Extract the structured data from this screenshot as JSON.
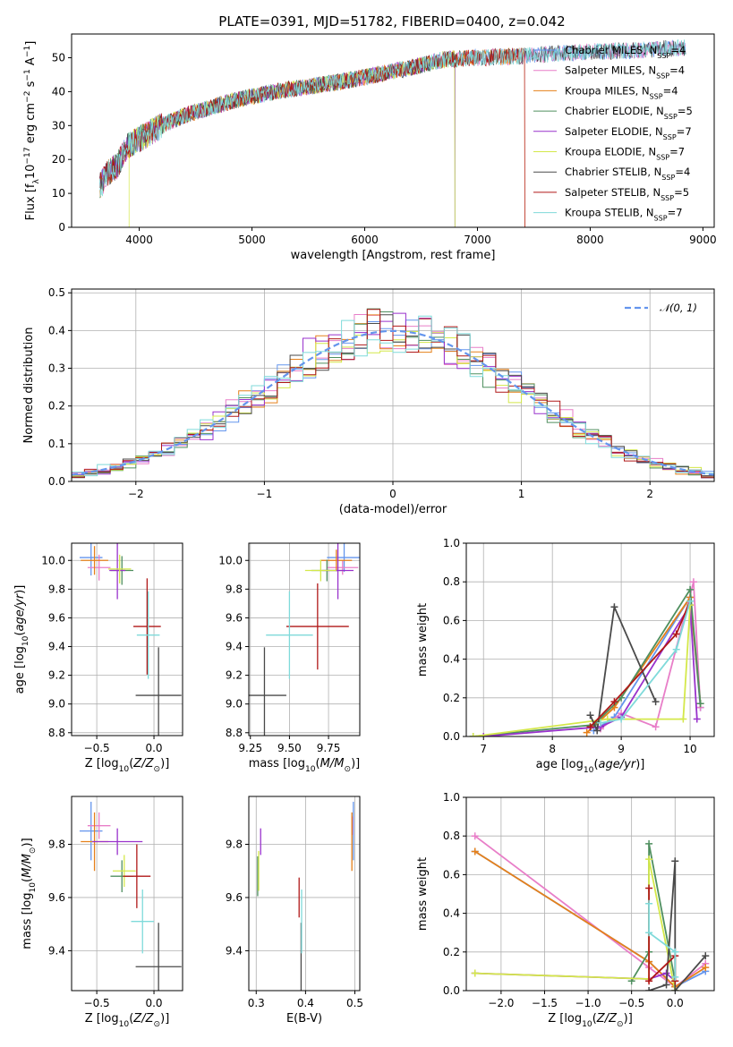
{
  "figure": {
    "title": "PLATE=0391, MJD=51782, FIBERID=0400, z=0.042"
  },
  "colors": {
    "Chabrier MILES": "#6495ed",
    "Salpeter MILES": "#e87ec8",
    "Kroupa MILES": "#e5801a",
    "Chabrier ELODIE": "#4f8f5f",
    "Salpeter ELODIE": "#9932cc",
    "Kroupa ELODIE": "#d4e84a",
    "Chabrier STELIB": "#4a4a4a",
    "Salpeter STELIB": "#b01818",
    "Kroupa STELIB": "#7fdada",
    "gaussian": "#6495ed",
    "grid": "#b0b0b0"
  },
  "chart_data": [
    {
      "id": "spectrum",
      "type": "line",
      "title": "PLATE=0391, MJD=51782, FIBERID=0400, z=0.042",
      "xlabel": "wavelength [Angstrom, rest frame]",
      "ylabel": "Flux [f_λ10^-17 erg cm^-2 s^-1 A^-1]",
      "xlim": [
        3400,
        9100
      ],
      "ylim": [
        0,
        57
      ],
      "xticks": [
        4000,
        5000,
        6000,
        7000,
        8000,
        9000
      ],
      "yticks": [
        0,
        10,
        20,
        30,
        40,
        50
      ],
      "grid": false,
      "legend_position": "upper-right",
      "continuum": [
        [
          3650,
          12
        ],
        [
          3720,
          16
        ],
        [
          3800,
          18
        ],
        [
          3900,
          24
        ],
        [
          4000,
          26
        ],
        [
          4100,
          28
        ],
        [
          4200,
          30
        ],
        [
          4400,
          33
        ],
        [
          4600,
          35
        ],
        [
          4800,
          37
        ],
        [
          5000,
          38.5
        ],
        [
          5200,
          40
        ],
        [
          5500,
          41.5
        ],
        [
          5800,
          43
        ],
        [
          6100,
          45
        ],
        [
          6400,
          47
        ],
        [
          6700,
          49.5
        ],
        [
          7000,
          50
        ],
        [
          7400,
          50.5
        ],
        [
          7800,
          51.5
        ],
        [
          8200,
          52
        ],
        [
          8600,
          52.5
        ],
        [
          8850,
          53
        ]
      ],
      "series": [
        {
          "name": "Chabrier MILES",
          "nssp": "4",
          "end": 8850
        },
        {
          "name": "Salpeter MILES",
          "nssp": "4",
          "end": 8850
        },
        {
          "name": "Kroupa MILES",
          "nssp": "4",
          "end": 7420
        },
        {
          "name": "Chabrier ELODIE",
          "nssp": "5",
          "end": 6800
        },
        {
          "name": "Salpeter ELODIE",
          "nssp": "7",
          "end": 6800
        },
        {
          "name": "Kroupa ELODIE",
          "nssp": "7",
          "start": 3910,
          "end": 6800
        },
        {
          "name": "Chabrier STELIB",
          "nssp": "4",
          "end": 8850
        },
        {
          "name": "Salpeter STELIB",
          "nssp": "5",
          "end": 7420
        },
        {
          "name": "Kroupa STELIB",
          "nssp": "7",
          "end": 8850
        }
      ]
    },
    {
      "id": "residuals",
      "type": "line",
      "xlabel": "(data-model)/error",
      "ylabel": "Normed distribution",
      "xlim": [
        -2.5,
        2.5
      ],
      "ylim": [
        0,
        0.51
      ],
      "xticks": [
        -2,
        -1,
        0,
        1,
        2
      ],
      "yticks": [
        0.0,
        0.1,
        0.2,
        0.3,
        0.4,
        0.5
      ],
      "grid": true,
      "legend_position": "upper-right",
      "gaussian_label": "𝒩(0, 1)",
      "bin_edges_from": -2.5,
      "bin_width": 0.1,
      "bins": 50,
      "series": [
        {
          "name": "Chabrier MILES"
        },
        {
          "name": "Salpeter MILES"
        },
        {
          "name": "Kroupa MILES"
        },
        {
          "name": "Chabrier ELODIE"
        },
        {
          "name": "Salpeter ELODIE"
        },
        {
          "name": "Kroupa ELODIE"
        },
        {
          "name": "Chabrier STELIB"
        },
        {
          "name": "Salpeter STELIB"
        },
        {
          "name": "Kroupa STELIB"
        }
      ]
    },
    {
      "id": "z_age",
      "type": "scatter",
      "xlabel": "Z [log10(Z/Z☉)]",
      "ylabel": "age  [log10(age/yr)]",
      "xlim": [
        -0.72,
        0.25
      ],
      "ylim": [
        8.78,
        10.12
      ],
      "xticks": [
        -0.5,
        0.0
      ],
      "yticks": [
        8.8,
        9.0,
        9.2,
        9.4,
        9.6,
        9.8,
        10.0
      ],
      "grid": true,
      "points": [
        {
          "name": "Chabrier MILES",
          "x": -0.55,
          "xerr": 0.1,
          "y": 10.02,
          "yerr": 0.25
        },
        {
          "name": "Salpeter MILES",
          "x": -0.48,
          "xerr": 0.1,
          "y": 9.95,
          "yerr": 0.18
        },
        {
          "name": "Kroupa MILES",
          "x": -0.52,
          "xerr": 0.12,
          "y": 10.0,
          "yerr": 0.2
        },
        {
          "name": "Chabrier ELODIE",
          "x": -0.28,
          "xerr": 0.1,
          "y": 9.93,
          "yerr": 0.2
        },
        {
          "name": "Salpeter ELODIE",
          "x": -0.32,
          "xerr": 0.07,
          "y": 9.93,
          "yerr": 0.4
        },
        {
          "name": "Kroupa ELODIE",
          "x": -0.3,
          "xerr": 0.1,
          "y": 9.94,
          "yerr": 0.2
        },
        {
          "name": "Chabrier STELIB",
          "x": 0.04,
          "xerr": 0.2,
          "y": 9.06,
          "yerr": 0.67
        },
        {
          "name": "Salpeter STELIB",
          "x": -0.06,
          "xerr": 0.12,
          "y": 9.54,
          "yerr": 0.67
        },
        {
          "name": "Kroupa STELIB",
          "x": -0.05,
          "xerr": 0.1,
          "y": 9.48,
          "yerr": 0.61
        }
      ]
    },
    {
      "id": "mass_age",
      "type": "scatter",
      "xlabel": "mass [log10(M/M☉)]",
      "ylabel": "",
      "xlim": [
        9.24,
        9.95
      ],
      "ylim": [
        8.78,
        10.12
      ],
      "xticks": [
        9.25,
        9.5,
        9.75
      ],
      "yticks": [
        8.8,
        9.0,
        9.2,
        9.4,
        9.6,
        9.8,
        10.0
      ],
      "grid": true,
      "points": [
        {
          "name": "Chabrier MILES",
          "x": 9.85,
          "xerr": 0.11,
          "y": 10.02,
          "yerr": 0.2
        },
        {
          "name": "Salpeter MILES",
          "x": 9.84,
          "xerr": 0.1,
          "y": 9.95,
          "yerr": 0.1
        },
        {
          "name": "Kroupa MILES",
          "x": 9.8,
          "xerr": 0.1,
          "y": 10.0,
          "yerr": 0.15
        },
        {
          "name": "Chabrier ELODIE",
          "x": 9.74,
          "xerr": 0.1,
          "y": 9.93,
          "yerr": 0.15
        },
        {
          "name": "Salpeter ELODIE",
          "x": 9.81,
          "xerr": 0.1,
          "y": 9.93,
          "yerr": 0.4
        },
        {
          "name": "Kroupa ELODIE",
          "x": 9.7,
          "xerr": 0.1,
          "y": 9.93,
          "yerr": 0.15
        },
        {
          "name": "Chabrier STELIB",
          "x": 9.34,
          "xerr": 0.14,
          "y": 9.06,
          "yerr": 0.67
        },
        {
          "name": "Salpeter STELIB",
          "x": 9.68,
          "xerr": 0.2,
          "y": 9.54,
          "yerr": 0.6
        },
        {
          "name": "Kroupa STELIB",
          "x": 9.5,
          "xerr": 0.15,
          "y": 9.48,
          "yerr": 0.61
        }
      ]
    },
    {
      "id": "age_weight",
      "type": "line",
      "xlabel": "age  [log10(age/yr)]",
      "ylabel": "mass weight",
      "xlim": [
        6.75,
        10.35
      ],
      "ylim": [
        0,
        1.0
      ],
      "xticks": [
        7,
        8,
        9,
        10
      ],
      "yticks": [
        0.0,
        0.2,
        0.4,
        0.6,
        0.8,
        1.0
      ],
      "grid": true,
      "series": [
        {
          "name": "Chabrier MILES",
          "x": [
            8.6,
            8.9,
            10.0,
            10.15
          ],
          "y": [
            0.03,
            0.1,
            0.72,
            0.15
          ]
        },
        {
          "name": "Salpeter MILES",
          "x": [
            8.7,
            9.0,
            9.5,
            10.05,
            10.15
          ],
          "y": [
            0.04,
            0.12,
            0.05,
            0.8,
            0.15
          ]
        },
        {
          "name": "Kroupa MILES",
          "x": [
            8.5,
            8.9,
            10.0,
            10.15
          ],
          "y": [
            0.02,
            0.15,
            0.72,
            0.17
          ]
        },
        {
          "name": "Chabrier ELODIE",
          "x": [
            6.85,
            8.6,
            9.0,
            10.0,
            10.15
          ],
          "y": [
            0.0,
            0.06,
            0.2,
            0.76,
            0.17
          ]
        },
        {
          "name": "Salpeter ELODIE",
          "x": [
            7.0,
            8.7,
            9.0,
            10.0,
            10.1
          ],
          "y": [
            0.0,
            0.05,
            0.1,
            0.68,
            0.09
          ]
        },
        {
          "name": "Kroupa ELODIE",
          "x": [
            6.85,
            8.8,
            9.9,
            10.0
          ],
          "y": [
            0.0,
            0.09,
            0.09,
            0.68
          ]
        },
        {
          "name": "Chabrier STELIB",
          "x": [
            8.55,
            8.65,
            8.9,
            9.5
          ],
          "y": [
            0.11,
            0.03,
            0.67,
            0.18
          ]
        },
        {
          "name": "Salpeter STELIB",
          "x": [
            8.55,
            8.9,
            9.8,
            10.0
          ],
          "y": [
            0.05,
            0.18,
            0.53,
            0.7
          ]
        },
        {
          "name": "Kroupa STELIB",
          "x": [
            8.7,
            9.0,
            9.8,
            10.0
          ],
          "y": [
            0.07,
            0.09,
            0.45,
            0.7
          ]
        }
      ]
    },
    {
      "id": "z_mass",
      "type": "scatter",
      "xlabel": "Z [log10(Z/Z☉)]",
      "ylabel": "mass [log10(M/M☉)]",
      "xlim": [
        -0.72,
        0.25
      ],
      "ylim": [
        9.25,
        9.98
      ],
      "xticks": [
        -0.5,
        0.0
      ],
      "yticks": [
        9.4,
        9.6,
        9.8
      ],
      "grid": true,
      "points": [
        {
          "name": "Chabrier MILES",
          "x": -0.55,
          "xerr": 0.1,
          "y": 9.85,
          "yerr": 0.22
        },
        {
          "name": "Salpeter MILES",
          "x": -0.48,
          "xerr": 0.1,
          "y": 9.87,
          "yerr": 0.1
        },
        {
          "name": "Kroupa MILES",
          "x": -0.52,
          "xerr": 0.12,
          "y": 9.81,
          "yerr": 0.22
        },
        {
          "name": "Chabrier ELODIE",
          "x": -0.28,
          "xerr": 0.1,
          "y": 9.68,
          "yerr": 0.12
        },
        {
          "name": "Salpeter ELODIE",
          "x": -0.32,
          "xerr": 0.22,
          "y": 9.81,
          "yerr": 0.1
        },
        {
          "name": "Kroupa ELODIE",
          "x": -0.26,
          "xerr": 0.1,
          "y": 9.7,
          "yerr": 0.12
        },
        {
          "name": "Chabrier STELIB",
          "x": 0.04,
          "xerr": 0.2,
          "y": 9.34,
          "yerr": 0.33
        },
        {
          "name": "Salpeter STELIB",
          "x": -0.15,
          "xerr": 0.12,
          "y": 9.68,
          "yerr": 0.24
        },
        {
          "name": "Kroupa STELIB",
          "x": -0.1,
          "xerr": 0.1,
          "y": 9.51,
          "yerr": 0.24
        }
      ]
    },
    {
      "id": "ebv_mass",
      "type": "scatter",
      "xlabel": "E(B-V)",
      "ylabel": "",
      "xlim": [
        0.285,
        0.51
      ],
      "ylim": [
        9.25,
        9.98
      ],
      "xticks": [
        0.3,
        0.4,
        0.5
      ],
      "yticks": [
        9.4,
        9.6,
        9.8
      ],
      "grid": true,
      "points": [
        {
          "name": "Chabrier MILES",
          "x": 0.497,
          "y": 9.85,
          "yerr": 0.22
        },
        {
          "name": "Salpeter MILES",
          "x": 0.495,
          "y": 9.87,
          "yerr": 0.07
        },
        {
          "name": "Kroupa MILES",
          "x": 0.494,
          "y": 9.81,
          "yerr": 0.22
        },
        {
          "name": "Chabrier ELODIE",
          "x": 0.303,
          "y": 9.68,
          "yerr": 0.15
        },
        {
          "name": "Salpeter ELODIE",
          "x": 0.309,
          "y": 9.81,
          "yerr": 0.1
        },
        {
          "name": "Kroupa ELODIE",
          "x": 0.305,
          "y": 9.7,
          "yerr": 0.15
        },
        {
          "name": "Chabrier STELIB",
          "x": 0.391,
          "y": 9.34,
          "yerr": 0.33
        },
        {
          "name": "Salpeter STELIB",
          "x": 0.387,
          "y": 9.6,
          "yerr": 0.15
        },
        {
          "name": "Kroupa STELIB",
          "x": 0.392,
          "y": 9.51,
          "yerr": 0.24
        }
      ]
    },
    {
      "id": "z_weight",
      "type": "line",
      "xlabel": "Z [log10(Z/Z☉)]",
      "ylabel": "mass weight",
      "xlim": [
        -2.4,
        0.45
      ],
      "ylim": [
        0,
        1.0
      ],
      "xticks": [
        -2.0,
        -1.5,
        -1.0,
        -0.5,
        0.0
      ],
      "yticks": [
        0.0,
        0.2,
        0.4,
        0.6,
        0.8,
        1.0
      ],
      "grid": true,
      "series": [
        {
          "name": "Chabrier MILES",
          "x": [
            -2.3,
            -0.3,
            0.0,
            0.35
          ],
          "y": [
            0.72,
            0.15,
            0.02,
            0.1
          ]
        },
        {
          "name": "Salpeter MILES",
          "x": [
            -2.3,
            -0.3,
            0.0,
            0.35
          ],
          "y": [
            0.8,
            0.12,
            0.02,
            0.14
          ]
        },
        {
          "name": "Kroupa MILES",
          "x": [
            -2.3,
            -0.3,
            0.0,
            0.35
          ],
          "y": [
            0.72,
            0.15,
            0.02,
            0.12
          ]
        },
        {
          "name": "Chabrier ELODIE",
          "x": [
            -0.5,
            -0.3,
            -0.3,
            0.0
          ],
          "y": [
            0.05,
            0.2,
            0.76,
            0.05
          ]
        },
        {
          "name": "Salpeter ELODIE",
          "x": [
            -2.3,
            -0.3,
            -0.1,
            0.0
          ],
          "y": [
            0.09,
            0.06,
            0.09,
            0.05
          ]
        },
        {
          "name": "Kroupa ELODIE",
          "x": [
            -2.3,
            -0.3,
            -0.3,
            0.0
          ],
          "y": [
            0.09,
            0.06,
            0.68,
            0.0
          ]
        },
        {
          "name": "Chabrier STELIB",
          "x": [
            -0.3,
            -0.1,
            0.0,
            0.0,
            0.35
          ],
          "y": [
            0.0,
            0.03,
            0.67,
            0.0,
            0.18
          ]
        },
        {
          "name": "Salpeter STELIB",
          "x": [
            -0.3,
            -0.3,
            0.0,
            0.0
          ],
          "y": [
            0.53,
            0.05,
            0.18,
            0.05
          ]
        },
        {
          "name": "Kroupa STELIB",
          "x": [
            -0.3,
            -0.3,
            0.0,
            0.0
          ],
          "y": [
            0.45,
            0.3,
            0.2,
            0.07
          ]
        }
      ]
    }
  ]
}
